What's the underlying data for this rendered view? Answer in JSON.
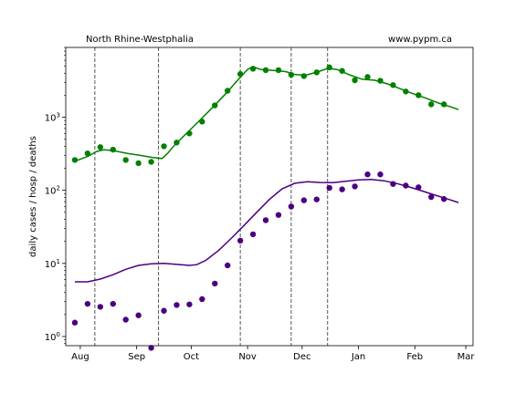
{
  "chart_data": {
    "type": "scatter",
    "title_left": "North Rhine-Westphalia",
    "title_right": "www.pypm.ca",
    "xlabel": "",
    "ylabel": "daily cases / hosp / deaths",
    "yscale": "log",
    "ylim": [
      0.75,
      9000
    ],
    "xlim": [
      "2020-07-24",
      "2021-03-05"
    ],
    "x_ticks": [
      {
        "date": "2020-08-01",
        "label": "Aug"
      },
      {
        "date": "2020-09-01",
        "label": "Sep"
      },
      {
        "date": "2020-10-01",
        "label": "Oct"
      },
      {
        "date": "2020-11-01",
        "label": "Nov"
      },
      {
        "date": "2020-12-01",
        "label": "Dec"
      },
      {
        "date": "2021-01-01",
        "label": "Jan"
      },
      {
        "date": "2021-02-01",
        "label": "Feb"
      },
      {
        "date": "2021-03-01",
        "label": "Mar"
      }
    ],
    "y_ticks": [
      {
        "value": 1,
        "label": "10^0"
      },
      {
        "value": 10,
        "label": "10^1"
      },
      {
        "value": 100,
        "label": "10^2"
      },
      {
        "value": 1000,
        "label": "10^3"
      }
    ],
    "vlines": [
      "2020-08-09",
      "2020-09-13",
      "2020-10-28",
      "2020-11-25",
      "2020-12-15"
    ],
    "grid": false,
    "legend": "none",
    "series": [
      {
        "color": "#008000",
        "points": [
          {
            "x": "2020-07-29",
            "y": 260
          },
          {
            "x": "2020-08-05",
            "y": 320
          },
          {
            "x": "2020-08-12",
            "y": 390
          },
          {
            "x": "2020-08-19",
            "y": 360
          },
          {
            "x": "2020-08-26",
            "y": 260
          },
          {
            "x": "2020-09-02",
            "y": 235
          },
          {
            "x": "2020-09-09",
            "y": 245
          },
          {
            "x": "2020-09-16",
            "y": 400
          },
          {
            "x": "2020-09-23",
            "y": 450
          },
          {
            "x": "2020-09-30",
            "y": 600
          },
          {
            "x": "2020-10-07",
            "y": 870
          },
          {
            "x": "2020-10-14",
            "y": 1450
          },
          {
            "x": "2020-10-21",
            "y": 2300
          },
          {
            "x": "2020-10-28",
            "y": 3900
          },
          {
            "x": "2020-11-04",
            "y": 4600
          },
          {
            "x": "2020-11-11",
            "y": 4400
          },
          {
            "x": "2020-11-18",
            "y": 4400
          },
          {
            "x": "2020-11-25",
            "y": 3800
          },
          {
            "x": "2020-12-02",
            "y": 3650
          },
          {
            "x": "2020-12-09",
            "y": 4100
          },
          {
            "x": "2020-12-16",
            "y": 4800
          },
          {
            "x": "2020-12-23",
            "y": 4300
          },
          {
            "x": "2020-12-30",
            "y": 3200
          },
          {
            "x": "2021-01-06",
            "y": 3550
          },
          {
            "x": "2021-01-13",
            "y": 3150
          },
          {
            "x": "2021-01-20",
            "y": 2750
          },
          {
            "x": "2021-01-27",
            "y": 2250
          },
          {
            "x": "2021-02-03",
            "y": 2000
          },
          {
            "x": "2021-02-10",
            "y": 1500
          },
          {
            "x": "2021-02-17",
            "y": 1500
          }
        ],
        "curve": [
          {
            "x": "2020-07-29",
            "y": 250
          },
          {
            "x": "2020-08-05",
            "y": 290
          },
          {
            "x": "2020-08-10",
            "y": 340
          },
          {
            "x": "2020-08-14",
            "y": 360
          },
          {
            "x": "2020-08-20",
            "y": 345
          },
          {
            "x": "2020-08-27",
            "y": 320
          },
          {
            "x": "2020-09-03",
            "y": 300
          },
          {
            "x": "2020-09-10",
            "y": 280
          },
          {
            "x": "2020-09-15",
            "y": 272
          },
          {
            "x": "2020-09-18",
            "y": 320
          },
          {
            "x": "2020-09-22",
            "y": 420
          },
          {
            "x": "2020-09-29",
            "y": 620
          },
          {
            "x": "2020-10-06",
            "y": 920
          },
          {
            "x": "2020-10-13",
            "y": 1380
          },
          {
            "x": "2020-10-20",
            "y": 2100
          },
          {
            "x": "2020-10-27",
            "y": 3300
          },
          {
            "x": "2020-11-01",
            "y": 4500
          },
          {
            "x": "2020-11-04",
            "y": 4900
          },
          {
            "x": "2020-11-08",
            "y": 4500
          },
          {
            "x": "2020-11-15",
            "y": 4350
          },
          {
            "x": "2020-11-22",
            "y": 4200
          },
          {
            "x": "2020-11-27",
            "y": 3850
          },
          {
            "x": "2020-12-03",
            "y": 3750
          },
          {
            "x": "2020-12-10",
            "y": 4200
          },
          {
            "x": "2020-12-15",
            "y": 4650
          },
          {
            "x": "2020-12-20",
            "y": 4500
          },
          {
            "x": "2020-12-27",
            "y": 3800
          },
          {
            "x": "2021-01-03",
            "y": 3300
          },
          {
            "x": "2021-01-10",
            "y": 3200
          },
          {
            "x": "2021-01-17",
            "y": 2850
          },
          {
            "x": "2021-01-24",
            "y": 2450
          },
          {
            "x": "2021-01-31",
            "y": 2100
          },
          {
            "x": "2021-02-07",
            "y": 1820
          },
          {
            "x": "2021-02-14",
            "y": 1560
          },
          {
            "x": "2021-02-21",
            "y": 1380
          },
          {
            "x": "2021-02-25",
            "y": 1270
          }
        ]
      },
      {
        "color": "#4b0082",
        "points": [
          {
            "x": "2020-07-29",
            "y": 1.55
          },
          {
            "x": "2020-08-05",
            "y": 2.8
          },
          {
            "x": "2020-08-12",
            "y": 2.55
          },
          {
            "x": "2020-08-19",
            "y": 2.8
          },
          {
            "x": "2020-08-26",
            "y": 1.7
          },
          {
            "x": "2020-09-02",
            "y": 1.95
          },
          {
            "x": "2020-09-09",
            "y": 0.7
          },
          {
            "x": "2020-09-16",
            "y": 2.25
          },
          {
            "x": "2020-09-23",
            "y": 2.7
          },
          {
            "x": "2020-09-30",
            "y": 2.75
          },
          {
            "x": "2020-10-07",
            "y": 3.25
          },
          {
            "x": "2020-10-14",
            "y": 5.3
          },
          {
            "x": "2020-10-21",
            "y": 9.4
          },
          {
            "x": "2020-10-28",
            "y": 20.5
          },
          {
            "x": "2020-11-04",
            "y": 25
          },
          {
            "x": "2020-11-11",
            "y": 39
          },
          {
            "x": "2020-11-18",
            "y": 46
          },
          {
            "x": "2020-11-25",
            "y": 60
          },
          {
            "x": "2020-12-02",
            "y": 73
          },
          {
            "x": "2020-12-09",
            "y": 75
          },
          {
            "x": "2020-12-16",
            "y": 108
          },
          {
            "x": "2020-12-23",
            "y": 103
          },
          {
            "x": "2020-12-30",
            "y": 113
          },
          {
            "x": "2021-01-06",
            "y": 165
          },
          {
            "x": "2021-01-13",
            "y": 165
          },
          {
            "x": "2021-01-20",
            "y": 122
          },
          {
            "x": "2021-01-27",
            "y": 116
          },
          {
            "x": "2021-02-03",
            "y": 110
          },
          {
            "x": "2021-02-10",
            "y": 81
          },
          {
            "x": "2021-02-17",
            "y": 76
          }
        ],
        "curve": [
          {
            "x": "2020-07-29",
            "y": 5.6
          },
          {
            "x": "2020-08-05",
            "y": 5.6
          },
          {
            "x": "2020-08-12",
            "y": 6.1
          },
          {
            "x": "2020-08-19",
            "y": 7.0
          },
          {
            "x": "2020-08-26",
            "y": 8.3
          },
          {
            "x": "2020-09-02",
            "y": 9.4
          },
          {
            "x": "2020-09-09",
            "y": 9.9
          },
          {
            "x": "2020-09-16",
            "y": 10.0
          },
          {
            "x": "2020-09-23",
            "y": 9.7
          },
          {
            "x": "2020-09-30",
            "y": 9.4
          },
          {
            "x": "2020-10-04",
            "y": 9.6
          },
          {
            "x": "2020-10-09",
            "y": 11
          },
          {
            "x": "2020-10-16",
            "y": 15
          },
          {
            "x": "2020-10-23",
            "y": 22
          },
          {
            "x": "2020-10-30",
            "y": 33
          },
          {
            "x": "2020-11-06",
            "y": 50
          },
          {
            "x": "2020-11-13",
            "y": 75
          },
          {
            "x": "2020-11-20",
            "y": 105
          },
          {
            "x": "2020-11-27",
            "y": 125
          },
          {
            "x": "2020-12-04",
            "y": 131
          },
          {
            "x": "2020-12-11",
            "y": 128
          },
          {
            "x": "2020-12-18",
            "y": 127
          },
          {
            "x": "2020-12-25",
            "y": 133
          },
          {
            "x": "2021-01-01",
            "y": 139
          },
          {
            "x": "2021-01-08",
            "y": 141
          },
          {
            "x": "2021-01-15",
            "y": 135
          },
          {
            "x": "2021-01-22",
            "y": 124
          },
          {
            "x": "2021-01-29",
            "y": 111
          },
          {
            "x": "2021-02-05",
            "y": 98
          },
          {
            "x": "2021-02-12",
            "y": 86
          },
          {
            "x": "2021-02-19",
            "y": 76
          },
          {
            "x": "2021-02-25",
            "y": 68
          }
        ]
      }
    ]
  }
}
